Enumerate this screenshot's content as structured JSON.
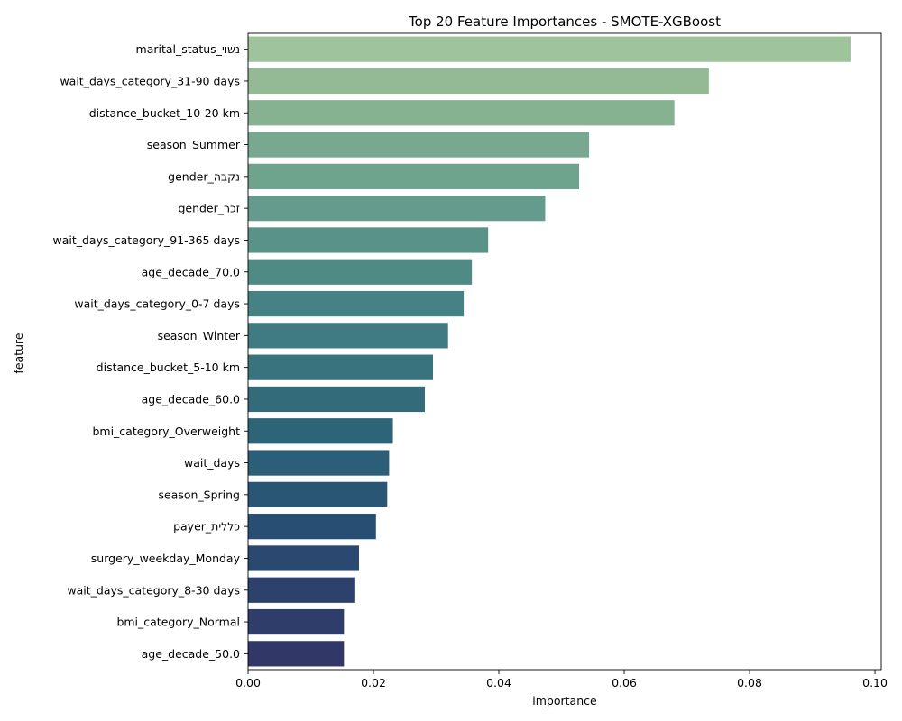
{
  "chart_data": {
    "type": "bar",
    "orientation": "horizontal",
    "title": "Top 20 Feature Importances - SMOTE-XGBoost",
    "xlabel": "importance",
    "ylabel": "feature",
    "xlim": [
      0,
      0.101
    ],
    "xticks": [
      "0.00",
      "0.02",
      "0.04",
      "0.06",
      "0.08",
      "0.10"
    ],
    "grid": false,
    "legend": "none",
    "categories": [
      "marital_status_נשוי",
      "wait_days_category_31-90 days",
      "distance_bucket_10-20 km",
      "season_Summer",
      "gender_נקבה",
      "gender_זכר",
      "wait_days_category_91-365 days",
      "age_decade_70.0",
      "wait_days_category_0-7 days",
      "season_Winter",
      "distance_bucket_5-10 km",
      "age_decade_60.0",
      "bmi_category_Overweight",
      "wait_days",
      "season_Spring",
      "payer_כללית",
      "surgery_weekday_Monday",
      "wait_days_category_8-30 days",
      "bmi_category_Normal",
      "age_decade_50.0"
    ],
    "values": [
      0.0961,
      0.0735,
      0.068,
      0.0544,
      0.0528,
      0.0474,
      0.0383,
      0.0357,
      0.0344,
      0.0319,
      0.0295,
      0.0282,
      0.0231,
      0.0225,
      0.0222,
      0.0204,
      0.0177,
      0.0171,
      0.0153,
      0.0153
    ],
    "colors": [
      "#9fc39b",
      "#93ba94",
      "#86b291",
      "#78a990",
      "#6ea38e",
      "#649b8d",
      "#599388",
      "#4f8a85",
      "#468283",
      "#3f7b80",
      "#39737e",
      "#336b7b",
      "#2e6478",
      "#2c5e77",
      "#2a5675",
      "#284f73",
      "#2a4870",
      "#2c426c",
      "#2e3d69",
      "#313766"
    ]
  }
}
